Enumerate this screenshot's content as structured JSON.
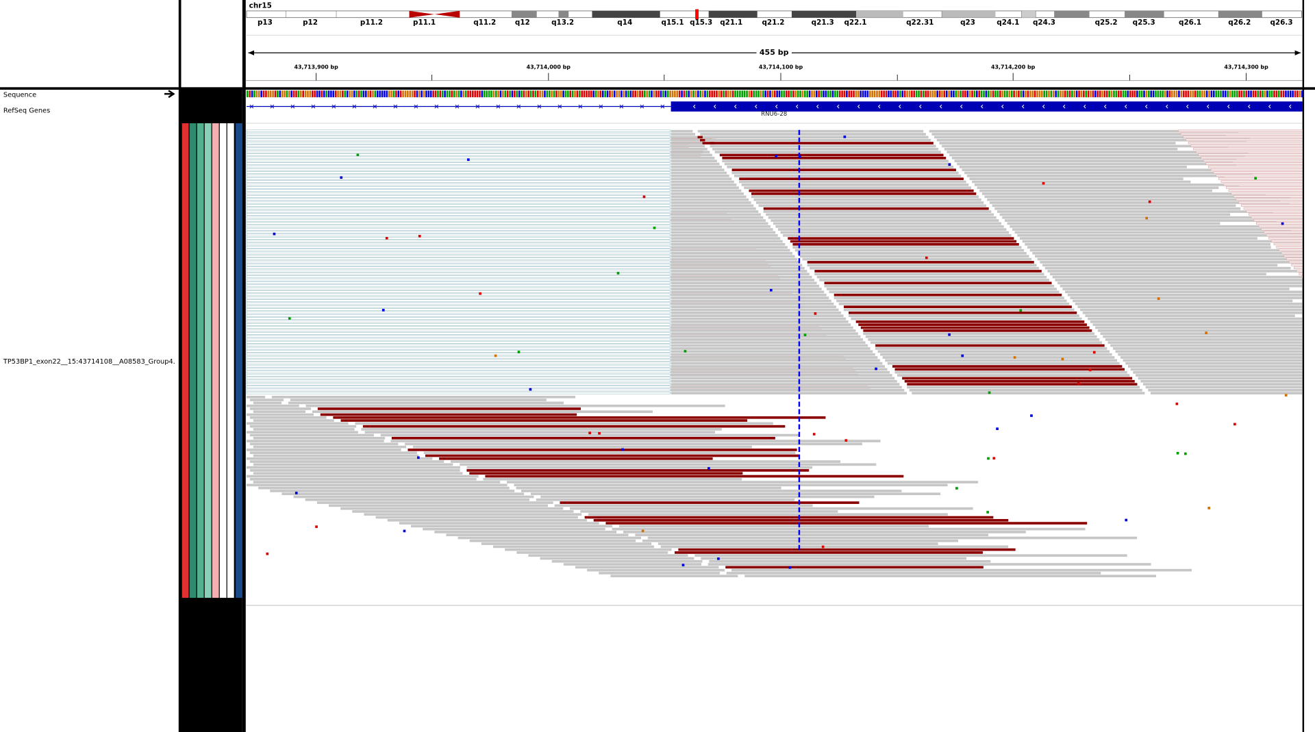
{
  "header": {
    "chromosome": "chr15",
    "bands": [
      "p13",
      "p12",
      "p11.2",
      "p11.1",
      "q11.2",
      "q12",
      "q13.2",
      "q14",
      "q15.1",
      "q15.3",
      "q21.1",
      "q21.2",
      "q21.3",
      "q22.1",
      "q22.31",
      "q23",
      "q24.1",
      "q24.3",
      "q25.2",
      "q25.3",
      "q26.1",
      "q26.2",
      "q26.3"
    ],
    "span": "455 bp",
    "positions": [
      "43,713,900 bp",
      "43,714,000 bp",
      "43,714,100 bp",
      "43,714,200 bp",
      "43,714,300 bp"
    ]
  },
  "tracks": {
    "sequence": "Sequence",
    "refseq": "RefSeq Genes",
    "gene": "RNU6-28",
    "alignment": "TP53BP1_exon22__15:43714108__A08583_Group4."
  }
}
